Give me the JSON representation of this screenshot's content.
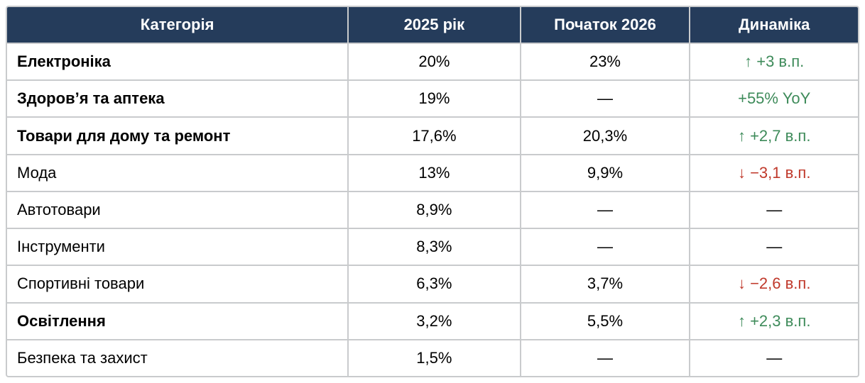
{
  "table": {
    "headers": [
      {
        "label": "Категорія"
      },
      {
        "label": "2025 рік"
      },
      {
        "label": "Початок 2026"
      },
      {
        "label": "Динаміка"
      }
    ],
    "rows": [
      {
        "category": "Електроніка",
        "bold": true,
        "y2025": "20%",
        "start2026": "23%",
        "dynamics": {
          "arrow": "↑",
          "text": "+3 в.п.",
          "trend": "up"
        }
      },
      {
        "category": "Здоров’я та аптека",
        "bold": true,
        "y2025": "19%",
        "start2026": "—",
        "dynamics": {
          "arrow": "",
          "text": "+55% YoY",
          "trend": "up"
        }
      },
      {
        "category": "Товари для дому та ремонт",
        "bold": true,
        "y2025": "17,6%",
        "start2026": "20,3%",
        "dynamics": {
          "arrow": "↑",
          "text": "+2,7 в.п.",
          "trend": "up"
        }
      },
      {
        "category": "Мода",
        "bold": false,
        "y2025": "13%",
        "start2026": "9,9%",
        "dynamics": {
          "arrow": "↓",
          "text": "−3,1 в.п.",
          "trend": "down"
        }
      },
      {
        "category": "Автотовари",
        "bold": false,
        "y2025": "8,9%",
        "start2026": "—",
        "dynamics": {
          "arrow": "",
          "text": "—",
          "trend": "none"
        }
      },
      {
        "category": "Інструменти",
        "bold": false,
        "y2025": "8,3%",
        "start2026": "—",
        "dynamics": {
          "arrow": "",
          "text": "—",
          "trend": "none"
        }
      },
      {
        "category": "Спортивні товари",
        "bold": false,
        "y2025": "6,3%",
        "start2026": "3,7%",
        "dynamics": {
          "arrow": "↓",
          "text": "−2,6 в.п.",
          "trend": "down"
        }
      },
      {
        "category": "Освітлення",
        "bold": true,
        "y2025": "3,2%",
        "start2026": "5,5%",
        "dynamics": {
          "arrow": "↑",
          "text": "+2,3 в.п.",
          "trend": "up"
        }
      },
      {
        "category": "Безпека та захист",
        "bold": false,
        "y2025": "1,5%",
        "start2026": "—",
        "dynamics": {
          "arrow": "",
          "text": "—",
          "trend": "none"
        }
      }
    ],
    "colors": {
      "header_bg": "#253c5b",
      "header_text": "#ffffff",
      "positive": "#3e8b5a",
      "negative": "#c0392b",
      "border": "#c9cbcd"
    },
    "column_widths_pct": [
      40.1,
      20.2,
      19.9,
      19.8
    ]
  },
  "chart_data": {
    "type": "table",
    "title": "",
    "columns": [
      "Категорія",
      "2025 рік",
      "Початок 2026",
      "Динаміка"
    ],
    "rows": [
      [
        "Електроніка",
        "20%",
        "23%",
        "↑ +3 в.п."
      ],
      [
        "Здоров’я та аптека",
        "19%",
        "—",
        "+55% YoY"
      ],
      [
        "Товари для дому та ремонт",
        "17,6%",
        "20,3%",
        "↑ +2,7 в.п."
      ],
      [
        "Мода",
        "13%",
        "9,9%",
        "↓ −3,1 в.п."
      ],
      [
        "Автотовари",
        "8,9%",
        "—",
        "—"
      ],
      [
        "Інструменти",
        "8,3%",
        "—",
        "—"
      ],
      [
        "Спортивні товари",
        "6,3%",
        "3,7%",
        "↓ −2,6 в.п."
      ],
      [
        "Освітлення",
        "3,2%",
        "5,5%",
        "↑ +2,3 в.п."
      ],
      [
        "Безпека та захист",
        "1,5%",
        "—",
        "—"
      ]
    ],
    "share_2025_pct": [
      20,
      19,
      17.6,
      13,
      8.9,
      8.3,
      6.3,
      3.2,
      1.5
    ],
    "start_2026_pct": [
      23,
      null,
      20.3,
      9.9,
      null,
      null,
      3.7,
      5.5,
      null
    ],
    "change_pp": [
      3,
      null,
      2.7,
      -3.1,
      null,
      null,
      -2.6,
      2.3,
      null
    ]
  }
}
